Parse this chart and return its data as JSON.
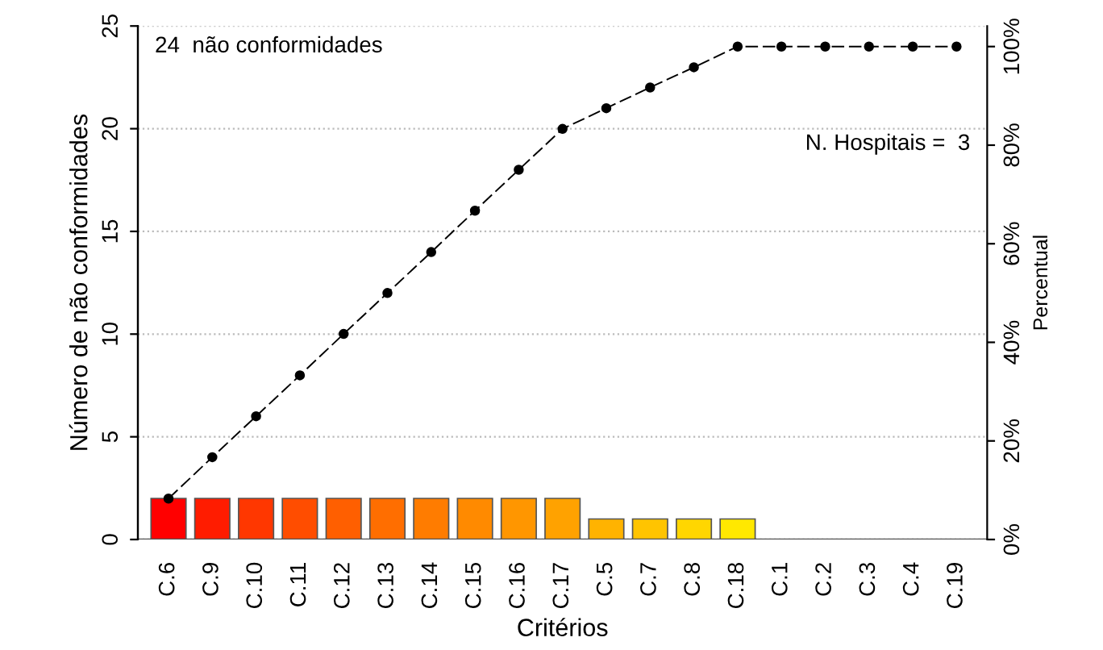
{
  "chart_data": {
    "type": "bar",
    "xlabel": "Critérios",
    "ylabel": "Número de não conformidades",
    "y2label": "Percentual",
    "categories": [
      "C.6",
      "C.9",
      "C.10",
      "C.11",
      "C.12",
      "C.13",
      "C.14",
      "C.15",
      "C.16",
      "C.17",
      "C.5",
      "C.7",
      "C.8",
      "C.18",
      "C.1",
      "C.2",
      "C.3",
      "C.4",
      "C.19"
    ],
    "series": [
      {
        "values": [
          2,
          2,
          2,
          2,
          2,
          2,
          2,
          2,
          2,
          2,
          1,
          1,
          1,
          1,
          0,
          0,
          0,
          0,
          0
        ],
        "colors": [
          "#ff0000",
          "#ff1c00",
          "#ff3700",
          "#ff4d00",
          "#ff5f00",
          "#ff6e00",
          "#ff7c00",
          "#ff8a00",
          "#ff9600",
          "#ffa200",
          "#ffb300",
          "#ffc400",
          "#ffd600",
          "#ffe800",
          "#ffff60",
          "#ffff60",
          "#ffff60",
          "#ffff60",
          "#ffff60"
        ]
      },
      {
        "type": "line",
        "axis": "y2",
        "color": "#000000",
        "marker": "circle",
        "line_style": "dashed",
        "values": [
          8.3,
          16.7,
          25,
          33.3,
          41.7,
          50,
          58.3,
          66.7,
          75,
          83.3,
          87.5,
          91.7,
          95.8,
          100,
          100,
          100,
          100,
          100,
          100
        ]
      }
    ],
    "ylim": [
      0,
      25
    ],
    "yticks": [
      0,
      5,
      10,
      15,
      20,
      25
    ],
    "y2lim": [
      0,
      104.17
    ],
    "y2ticks": [
      {
        "value": 0,
        "label": "0%"
      },
      {
        "value": 20,
        "label": "20%"
      },
      {
        "value": 40,
        "label": "40%"
      },
      {
        "value": 60,
        "label": "60%"
      },
      {
        "value": 80,
        "label": "80%"
      },
      {
        "value": 100,
        "label": "100%"
      }
    ],
    "grid": "y",
    "annotations": [
      "24  não conformidades",
      "N. Hospitais =  3"
    ]
  }
}
